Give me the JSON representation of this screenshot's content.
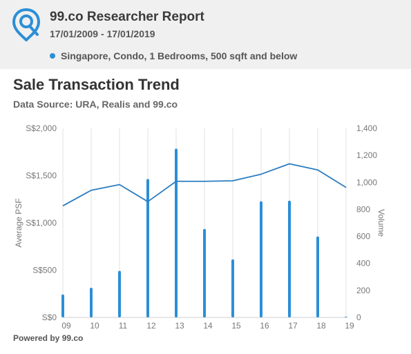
{
  "header": {
    "title": "99.co Researcher Report",
    "date_range": "17/01/2009 - 17/01/2019",
    "criteria": "Singapore, Condo, 1 Bedrooms, 500 sqft and below"
  },
  "icons": {
    "logo": "location-pin-icon",
    "bullet": "dot-icon"
  },
  "colors": {
    "accent": "#2b8fd6",
    "line": "#2a7cc0",
    "grid": "#e2e2e2",
    "axis_text": "#777777"
  },
  "chart_data": {
    "type": "bar+line",
    "title": "Sale Transaction Trend",
    "subtitle": "Data Source: URA, Realis and 99.co",
    "categories": [
      "09",
      "10",
      "11",
      "12",
      "13",
      "14",
      "15",
      "16",
      "17",
      "18",
      "19"
    ],
    "ylabel": "Average PSF",
    "y2label": "Volume",
    "ylim": [
      0,
      2000
    ],
    "y2lim": [
      0,
      1400
    ],
    "yticks": [
      "S$0",
      "S$500",
      "S$1,000",
      "S$1,500",
      "S$2,000"
    ],
    "y2ticks": [
      "0",
      "200",
      "400",
      "600",
      "800",
      "1,000",
      "1,200",
      "1,400"
    ],
    "grid": "vertical",
    "series": [
      {
        "type": "bar",
        "axis": "right",
        "values": [
          170,
          220,
          345,
          1025,
          1250,
          655,
          430,
          860,
          865,
          600,
          5
        ]
      },
      {
        "type": "line",
        "axis": "left",
        "values": [
          1180,
          1345,
          1405,
          1225,
          1440,
          1440,
          1445,
          1515,
          1625,
          1560,
          1375
        ]
      }
    ]
  },
  "footer": {
    "powered_by": "Powered by 99.co"
  }
}
